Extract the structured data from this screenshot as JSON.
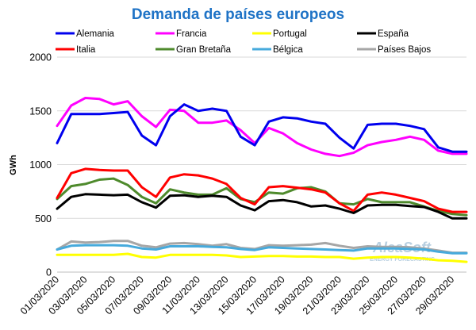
{
  "chart_data": {
    "type": "line",
    "title": "Demanda de países europeos",
    "ylabel": "GWh",
    "xlabel": "",
    "ylim": [
      0,
      2000
    ],
    "yticks": [
      0,
      500,
      1000,
      1500,
      2000
    ],
    "grid": "horizontal",
    "legend_position": "top",
    "x": [
      "01/03/2020",
      "02/03/2020",
      "03/03/2020",
      "04/03/2020",
      "05/03/2020",
      "06/03/2020",
      "07/03/2020",
      "08/03/2020",
      "09/03/2020",
      "10/03/2020",
      "11/03/2020",
      "12/03/2020",
      "13/03/2020",
      "14/03/2020",
      "15/03/2020",
      "16/03/2020",
      "17/03/2020",
      "18/03/2020",
      "19/03/2020",
      "20/03/2020",
      "21/03/2020",
      "22/03/2020",
      "23/03/2020",
      "24/03/2020",
      "25/03/2020",
      "26/03/2020",
      "27/03/2020",
      "28/03/2020",
      "29/03/2020",
      "30/03/2020"
    ],
    "x_tick_labels": [
      "01/03/2020",
      "03/03/2020",
      "05/03/2020",
      "07/03/2020",
      "09/03/2020",
      "11/03/2020",
      "13/03/2020",
      "15/03/2020",
      "17/03/2020",
      "19/03/2020",
      "21/03/2020",
      "23/03/2020",
      "25/03/2020",
      "27/03/2020",
      "29/03/2020"
    ],
    "series": [
      {
        "name": "Alemania",
        "color": "#0000ee",
        "values": [
          1200,
          1470,
          1470,
          1470,
          1480,
          1490,
          1270,
          1180,
          1450,
          1560,
          1500,
          1520,
          1500,
          1260,
          1180,
          1400,
          1440,
          1430,
          1400,
          1380,
          1250,
          1150,
          1370,
          1380,
          1380,
          1360,
          1330,
          1160,
          1120,
          1120
        ]
      },
      {
        "name": "Francia",
        "color": "#ff00ff",
        "values": [
          1360,
          1550,
          1620,
          1610,
          1560,
          1590,
          1450,
          1350,
          1510,
          1500,
          1390,
          1390,
          1410,
          1320,
          1200,
          1340,
          1290,
          1200,
          1140,
          1100,
          1080,
          1110,
          1180,
          1210,
          1230,
          1260,
          1230,
          1130,
          1100,
          1100
        ]
      },
      {
        "name": "Portugal",
        "color": "#ffff00",
        "values": [
          160,
          160,
          160,
          160,
          160,
          170,
          140,
          135,
          160,
          160,
          160,
          160,
          155,
          140,
          145,
          150,
          150,
          145,
          145,
          140,
          140,
          125,
          135,
          140,
          140,
          135,
          125,
          110,
          105,
          95
        ]
      },
      {
        "name": "España",
        "color": "#000000",
        "values": [
          590,
          700,
          725,
          720,
          715,
          720,
          650,
          600,
          710,
          715,
          700,
          710,
          700,
          620,
          575,
          660,
          670,
          650,
          610,
          620,
          590,
          550,
          620,
          625,
          625,
          615,
          605,
          560,
          500,
          500
        ]
      },
      {
        "name": "Italia",
        "color": "#ff0000",
        "values": [
          690,
          920,
          960,
          950,
          945,
          945,
          790,
          700,
          880,
          910,
          900,
          870,
          820,
          690,
          630,
          790,
          800,
          785,
          770,
          740,
          640,
          570,
          720,
          740,
          720,
          690,
          660,
          590,
          560,
          560
        ]
      },
      {
        "name": "Gran Bretaña",
        "color": "#4e8a2c",
        "values": [
          680,
          800,
          820,
          860,
          870,
          810,
          700,
          640,
          770,
          740,
          720,
          720,
          780,
          680,
          650,
          740,
          730,
          780,
          790,
          750,
          640,
          630,
          680,
          650,
          650,
          650,
          610,
          570,
          540,
          530
        ]
      },
      {
        "name": "Bélgica",
        "color": "#46aadc",
        "values": [
          210,
          245,
          250,
          250,
          250,
          245,
          220,
          210,
          240,
          240,
          240,
          235,
          230,
          215,
          205,
          230,
          225,
          220,
          215,
          210,
          205,
          200,
          220,
          220,
          220,
          215,
          210,
          190,
          175,
          175
        ]
      },
      {
        "name": "Países Bajos",
        "color": "#a6a6a6",
        "values": [
          210,
          285,
          275,
          280,
          290,
          290,
          245,
          230,
          265,
          270,
          260,
          245,
          260,
          225,
          215,
          250,
          245,
          250,
          255,
          270,
          245,
          225,
          240,
          235,
          235,
          230,
          220,
          200,
          180,
          180
        ]
      }
    ]
  },
  "watermark": {
    "brand": "AleaSoft",
    "tagline": "ENERGY FORECASTING"
  }
}
